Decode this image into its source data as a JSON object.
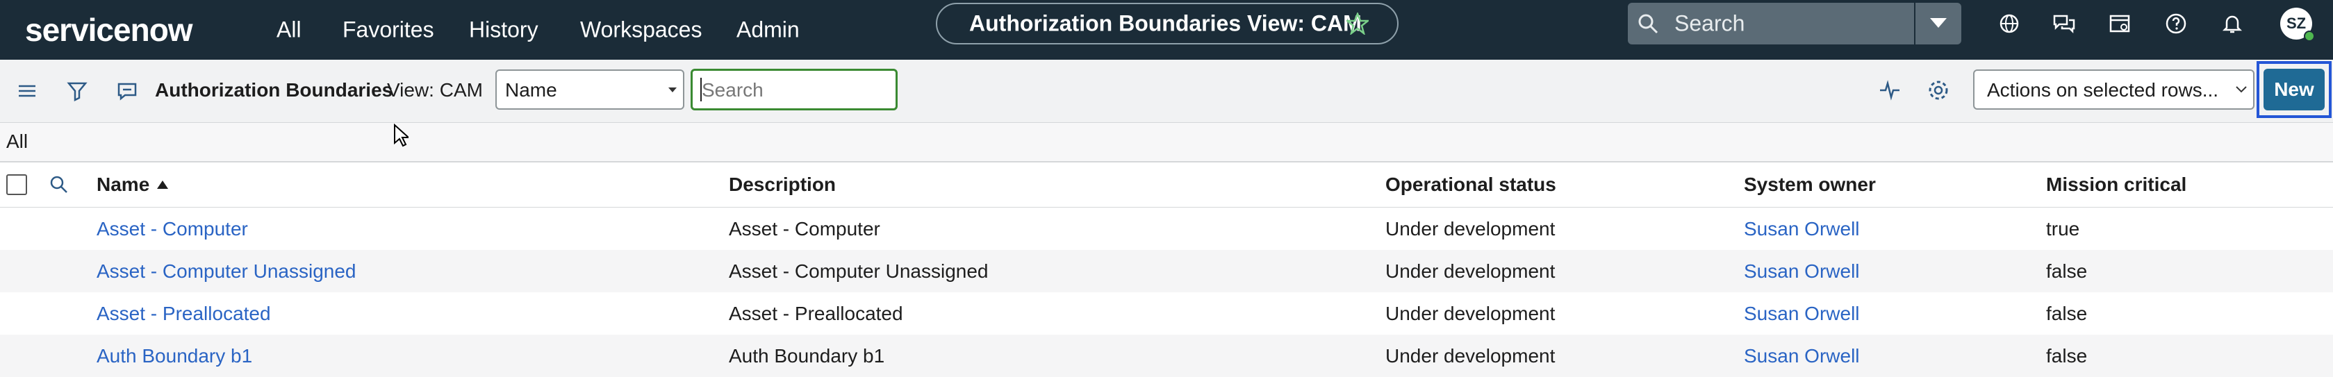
{
  "nav": {
    "logo": "servicenow",
    "items": [
      "All",
      "Favorites",
      "History",
      "Workspaces",
      "Admin"
    ],
    "context_title": "Authorization Boundaries View: CAM",
    "search_placeholder": "Search",
    "avatar": "SZ"
  },
  "list": {
    "title": "Authorization Boundaries",
    "view": "View: CAM",
    "field_select": "Name",
    "search_placeholder": "Search",
    "actions_select": "Actions on selected rows...",
    "new_button": "New",
    "breadcrumb": "All"
  },
  "table": {
    "columns": [
      "Name",
      "Description",
      "Operational status",
      "System owner",
      "Mission critical"
    ],
    "rows": [
      [
        "Asset - Computer",
        "Asset - Computer",
        "Under development",
        "Susan Orwell",
        "true"
      ],
      [
        "Asset - Computer Unassigned",
        "Asset - Computer Unassigned",
        "Under development",
        "Susan Orwell",
        "false"
      ],
      [
        "Asset - Preallocated",
        "Asset - Preallocated",
        "Under development",
        "Susan Orwell",
        "false"
      ],
      [
        "Auth Boundary b1",
        "Auth Boundary b1",
        "Under development",
        "Susan Orwell",
        "false"
      ]
    ]
  }
}
